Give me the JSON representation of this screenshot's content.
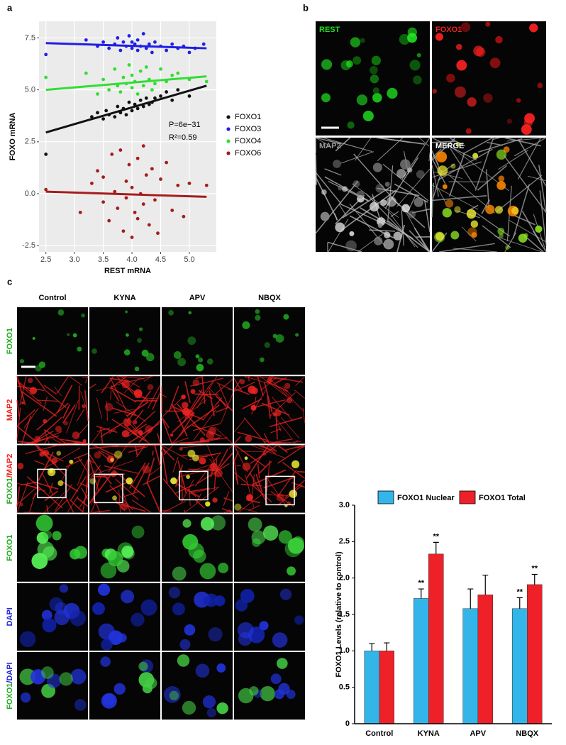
{
  "panel_labels": [
    "a",
    "b",
    "c"
  ],
  "panel_b": {
    "labels": [
      {
        "text": "REST",
        "color": "#22dd22"
      },
      {
        "text": "FOXO1",
        "color": "#ee2222"
      },
      {
        "text": "MAP2",
        "color": "#999999"
      },
      {
        "text": "MERGE",
        "color": "#ffffff"
      }
    ]
  },
  "panel_c": {
    "columns": [
      "Control",
      "KYNA",
      "APV",
      "NBQX"
    ],
    "rows": [
      [
        {
          "text": "FOXO1",
          "color": "#22aa22"
        }
      ],
      [
        {
          "text": "MAP2",
          "color": "#ee2222"
        }
      ],
      [
        {
          "text": "FOXO1",
          "color": "#22aa22"
        },
        {
          "text": "/MAP2",
          "color": "#ee2222"
        }
      ],
      [
        {
          "text": "FOXO1",
          "color": "#22aa22"
        }
      ],
      [
        {
          "text": "DAPI",
          "color": "#2222dd"
        }
      ],
      [
        {
          "text": "FOXO1",
          "color": "#22aa22"
        },
        {
          "text": "/DAPI",
          "color": "#2222dd"
        }
      ]
    ]
  },
  "chart_data": [
    {
      "type": "scatter",
      "xlabel": "REST mRNA",
      "ylabel": "FOXO mRNA",
      "xlim": [
        2.38,
        5.47
      ],
      "ylim": [
        -2.8,
        8.3
      ],
      "xticks": [
        2.5,
        {
          "value": 3,
          "label": "3.0"
        },
        3.5,
        {
          "value": 4,
          "label": "4.0"
        },
        4.5,
        {
          "value": 5,
          "label": "5.0"
        }
      ],
      "yticks": [
        -2.5,
        {
          "value": 0,
          "label": "0.0"
        },
        2.5,
        {
          "value": 5,
          "label": "5.0"
        },
        7.5
      ],
      "grid": true,
      "annotations": [
        "P=6e−31",
        "R²=0.59"
      ],
      "series": [
        {
          "name": "FOXO1",
          "color": "#111111",
          "x": [
            2.5,
            3.3,
            3.4,
            3.5,
            3.55,
            3.6,
            3.7,
            3.75,
            3.8,
            3.85,
            3.9,
            3.95,
            4.0,
            4.05,
            4.1,
            4.15,
            4.2,
            4.25,
            4.3,
            4.35,
            4.4,
            4.5,
            4.6,
            4.7,
            4.8,
            5.0
          ],
          "y": [
            1.9,
            3.7,
            3.9,
            3.6,
            4.0,
            3.8,
            3.7,
            4.2,
            3.9,
            4.1,
            3.8,
            4.4,
            4.0,
            4.3,
            4.1,
            4.5,
            4.2,
            4.6,
            4.3,
            4.4,
            4.6,
            4.7,
            4.9,
            4.5,
            5.0,
            4.7
          ],
          "fit": {
            "x": [
              2.5,
              5.3
            ],
            "y": [
              2.95,
              5.2
            ]
          }
        },
        {
          "name": "FOXO3",
          "color": "#1f1fe6",
          "x": [
            2.5,
            3.2,
            3.4,
            3.5,
            3.6,
            3.7,
            3.75,
            3.8,
            3.85,
            3.9,
            3.95,
            4.0,
            4.0,
            4.05,
            4.1,
            4.1,
            4.15,
            4.2,
            4.25,
            4.3,
            4.35,
            4.4,
            4.5,
            4.6,
            4.7,
            4.8,
            4.9,
            5.0,
            5.1,
            5.25
          ],
          "y": [
            6.7,
            7.4,
            7.1,
            7.3,
            7.0,
            7.2,
            7.5,
            6.9,
            7.3,
            7.1,
            7.6,
            7.0,
            7.3,
            7.2,
            6.9,
            7.4,
            7.1,
            7.7,
            7.0,
            7.2,
            6.8,
            7.3,
            7.1,
            6.9,
            7.2,
            7.0,
            7.1,
            6.8,
            7.0,
            7.2
          ],
          "fit": {
            "x": [
              2.5,
              5.3
            ],
            "y": [
              7.25,
              7.0
            ]
          }
        },
        {
          "name": "FOXO4",
          "color": "#33dd33",
          "x": [
            2.5,
            3.2,
            3.4,
            3.5,
            3.6,
            3.7,
            3.75,
            3.8,
            3.85,
            3.9,
            3.95,
            4.0,
            4.0,
            4.05,
            4.1,
            4.15,
            4.2,
            4.25,
            4.3,
            4.35,
            4.4,
            4.5,
            4.6,
            4.7,
            4.8,
            5.0,
            5.3
          ],
          "y": [
            5.6,
            5.8,
            4.8,
            5.5,
            5.0,
            6.0,
            5.2,
            4.9,
            5.6,
            5.3,
            6.2,
            5.1,
            5.7,
            5.4,
            4.8,
            5.9,
            5.2,
            6.1,
            5.5,
            5.0,
            5.3,
            6.0,
            5.4,
            5.7,
            5.8,
            5.5,
            5.4
          ],
          "fit": {
            "x": [
              2.5,
              5.3
            ],
            "y": [
              5.0,
              5.65
            ]
          }
        },
        {
          "name": "FOXO6",
          "color": "#a51c1c",
          "x": [
            2.5,
            3.1,
            3.3,
            3.4,
            3.5,
            3.5,
            3.6,
            3.65,
            3.7,
            3.75,
            3.8,
            3.85,
            3.9,
            3.9,
            3.95,
            4.0,
            4.0,
            4.05,
            4.1,
            4.1,
            4.15,
            4.2,
            4.2,
            4.25,
            4.3,
            4.35,
            4.4,
            4.45,
            4.5,
            4.6,
            4.7,
            4.8,
            4.9,
            5.0,
            5.3
          ],
          "y": [
            0.2,
            -0.9,
            0.5,
            1.1,
            -0.4,
            0.8,
            -1.3,
            1.9,
            0.1,
            -0.7,
            2.1,
            -1.8,
            0.6,
            -0.2,
            1.4,
            -2.1,
            0.3,
            -0.9,
            1.7,
            -1.2,
            0.0,
            2.3,
            -0.5,
            0.9,
            -1.5,
            1.2,
            -0.3,
            -1.9,
            0.7,
            1.5,
            -0.8,
            0.4,
            -1.1,
            0.5,
            0.4
          ],
          "fit": {
            "x": [
              2.5,
              5.3
            ],
            "y": [
              0.1,
              -0.15
            ]
          }
        }
      ]
    },
    {
      "type": "bar",
      "ylabel": "FOXO1 Levels (relative to control)",
      "categories": [
        "Control",
        "KYNA",
        "APV",
        "NBQX"
      ],
      "ylim": [
        0,
        3
      ],
      "yticks": [
        0,
        0.5,
        {
          "value": 1,
          "label": "1.0"
        },
        1.5,
        {
          "value": 2,
          "label": "2.0"
        },
        2.5,
        {
          "value": 3,
          "label": "3.0"
        }
      ],
      "series": [
        {
          "name": "FOXO1 Nuclear",
          "color": "#33b5ea",
          "values": [
            1.0,
            1.72,
            1.58,
            1.58
          ],
          "errors": [
            0.1,
            0.13,
            0.27,
            0.15
          ],
          "significance": [
            null,
            "**",
            null,
            "**"
          ]
        },
        {
          "name": "FOXO1 Total",
          "color": "#ee2028",
          "values": [
            1.0,
            2.33,
            1.77,
            1.91
          ],
          "errors": [
            0.11,
            0.16,
            0.27,
            0.14
          ],
          "significance": [
            null,
            "**",
            null,
            "**"
          ]
        }
      ]
    }
  ]
}
